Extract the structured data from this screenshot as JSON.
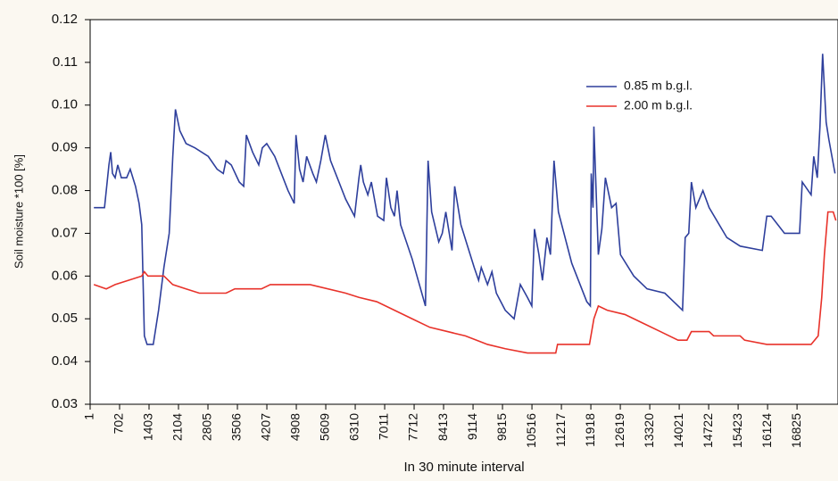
{
  "chart_data": {
    "type": "line",
    "xlabel": "In 30 minute interval",
    "ylabel": "Soil moisture *100 [%]",
    "xlim": [
      1,
      17800
    ],
    "ylim": [
      0.03,
      0.12
    ],
    "xticks": [
      1,
      702,
      1403,
      2104,
      2805,
      3506,
      4207,
      4908,
      5609,
      6310,
      7011,
      7712,
      8413,
      9114,
      9815,
      10516,
      11217,
      11918,
      12619,
      13320,
      14021,
      14722,
      15423,
      16124,
      16825
    ],
    "yticks": [
      0.03,
      0.04,
      0.05,
      0.06,
      0.07,
      0.08,
      0.09,
      {
        "value": 0.1,
        "label": "0.10"
      },
      0.11,
      0.12
    ],
    "grid": false,
    "legend": "upper right",
    "series": [
      {
        "name": "0.85 m b.g.l.",
        "color": "#2e3f9c",
        "x": [
          90,
          343,
          406,
          448,
          491,
          533,
          596,
          659,
          744,
          870,
          955,
          1081,
          1166,
          1229,
          1292,
          1356,
          1503,
          1630,
          1757,
          1883,
          1968,
          2031,
          2136,
          2284,
          2495,
          2812,
          3023,
          3170,
          3234,
          3360,
          3550,
          3656,
          3719,
          3867,
          4014,
          4099,
          4204,
          4394,
          4711,
          4858,
          4900,
          4985,
          5069,
          5154,
          5301,
          5386,
          5491,
          5597,
          5723,
          6082,
          6293,
          6399,
          6441,
          6504,
          6610,
          6694,
          6842,
          6989,
          7053,
          7158,
          7243,
          7306,
          7390,
          7665,
          7981,
          8044,
          8129,
          8298,
          8382,
          8466,
          8614,
          8677,
          8825,
          9142,
          9247,
          9310,
          9458,
          9564,
          9669,
          9880,
          10091,
          10239,
          10408,
          10513,
          10576,
          10682,
          10766,
          10872,
          10956,
          11041,
          11146,
          11463,
          11821,
          11906,
          11927,
          11969,
          11990,
          12096,
          12180,
          12264,
          12412,
          12518,
          12623,
          12940,
          13256,
          13678,
          13889,
          14100,
          14163,
          14248,
          14311,
          14417,
          14585,
          14733,
          15155,
          15472,
          15999,
          16105,
          16210,
          16527,
          16885,
          16949,
          17160,
          17223,
          17307,
          17371,
          17434,
          17518,
          17582,
          17729
        ],
        "values": [
          0.076,
          0.076,
          0.082,
          0.086,
          0.089,
          0.084,
          0.083,
          0.086,
          0.083,
          0.083,
          0.085,
          0.081,
          0.077,
          0.072,
          0.046,
          0.044,
          0.044,
          0.052,
          0.062,
          0.07,
          0.088,
          0.099,
          0.094,
          0.091,
          0.09,
          0.088,
          0.085,
          0.084,
          0.087,
          0.086,
          0.082,
          0.081,
          0.093,
          0.089,
          0.086,
          0.09,
          0.091,
          0.088,
          0.08,
          0.077,
          0.093,
          0.085,
          0.082,
          0.088,
          0.084,
          0.082,
          0.087,
          0.093,
          0.087,
          0.078,
          0.074,
          0.083,
          0.086,
          0.082,
          0.079,
          0.082,
          0.074,
          0.073,
          0.083,
          0.076,
          0.074,
          0.08,
          0.072,
          0.064,
          0.053,
          0.087,
          0.075,
          0.068,
          0.07,
          0.075,
          0.066,
          0.081,
          0.072,
          0.062,
          0.059,
          0.062,
          0.058,
          0.061,
          0.056,
          0.052,
          0.05,
          0.058,
          0.055,
          0.053,
          0.071,
          0.065,
          0.059,
          0.069,
          0.065,
          0.087,
          0.075,
          0.063,
          0.054,
          0.053,
          0.084,
          0.076,
          0.095,
          0.065,
          0.071,
          0.083,
          0.076,
          0.077,
          0.065,
          0.06,
          0.057,
          0.056,
          0.054,
          0.052,
          0.069,
          0.07,
          0.082,
          0.076,
          0.08,
          0.076,
          0.069,
          0.067,
          0.066,
          0.074,
          0.074,
          0.07,
          0.07,
          0.082,
          0.079,
          0.088,
          0.083,
          0.095,
          0.112,
          0.096,
          0.092,
          0.084
        ]
      },
      {
        "name": "2.00 m b.g.l.",
        "color": "#e8322a",
        "x": [
          90,
          385,
          596,
          913,
          1229,
          1292,
          1377,
          1757,
          1968,
          2284,
          2601,
          3234,
          3445,
          4078,
          4289,
          5238,
          6082,
          6399,
          6821,
          7243,
          7665,
          8087,
          8509,
          8931,
          9458,
          9880,
          10408,
          11083,
          11125,
          11885,
          11990,
          12096,
          12307,
          12729,
          13151,
          13573,
          13994,
          14206,
          14311,
          14733,
          14839,
          15472,
          15577,
          16105,
          17160,
          17328,
          17413,
          17476,
          17560,
          17687,
          17750
        ],
        "values": [
          0.058,
          0.057,
          0.058,
          0.059,
          0.06,
          0.061,
          0.06,
          0.06,
          0.058,
          0.057,
          0.056,
          0.056,
          0.057,
          0.057,
          0.058,
          0.058,
          0.056,
          0.055,
          0.054,
          0.052,
          0.05,
          0.048,
          0.047,
          0.046,
          0.044,
          0.043,
          0.042,
          0.042,
          0.044,
          0.044,
          0.05,
          0.053,
          0.052,
          0.051,
          0.049,
          0.047,
          0.045,
          0.045,
          0.047,
          0.047,
          0.046,
          0.046,
          0.045,
          0.044,
          0.044,
          0.046,
          0.055,
          0.065,
          0.075,
          0.075,
          0.073
        ]
      }
    ]
  }
}
